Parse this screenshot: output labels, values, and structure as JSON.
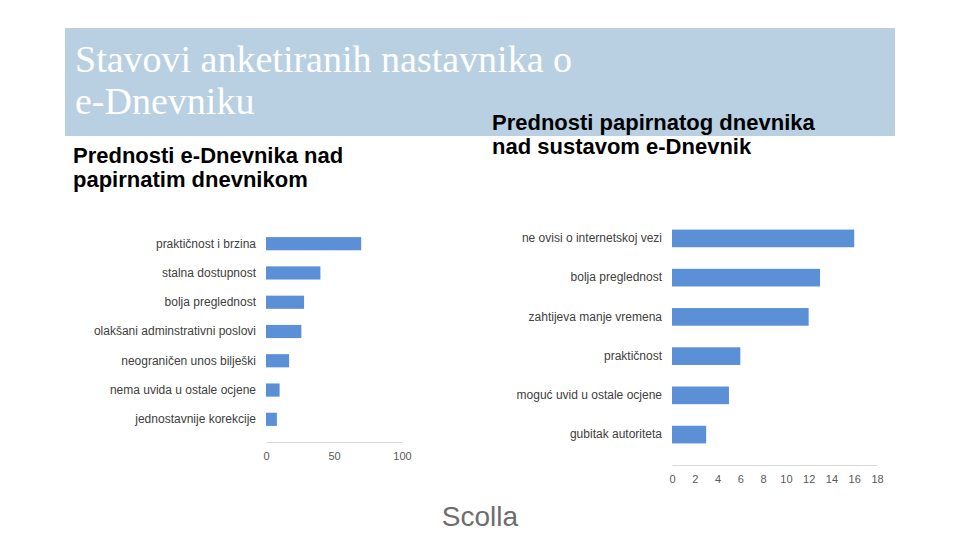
{
  "title": "Stavovi anketiranih nastavnika o e-Dnevniku",
  "logo": "Scolla",
  "chart_data": [
    {
      "type": "bar",
      "orientation": "horizontal",
      "title": "Prednosti e-Dnevnika nad papirnatim dnevnikom",
      "categories": [
        "praktičnost i brzina",
        "stalna dostupnost",
        "bolja preglednost",
        "olakšani adminstrativni poslovi",
        "neograničen unos bilješki",
        "nema uvida u ostale ocjene",
        "jednostavnije korekcije"
      ],
      "values": [
        70,
        40,
        28,
        26,
        17,
        10,
        8
      ],
      "color": "#5b8fd6",
      "xlim": [
        0,
        100
      ],
      "xticks": [
        0,
        50,
        100
      ],
      "grid": false
    },
    {
      "type": "bar",
      "orientation": "horizontal",
      "title": "Prednosti papirnatog dnevnika nad sustavom e-Dnevnik",
      "categories": [
        "ne ovisi o internetskoj vezi",
        "bolja preglednost",
        "zahtijeva manje vremena",
        "praktičnost",
        "moguć uvid u ostale ocjene",
        "gubitak autoriteta"
      ],
      "values": [
        16,
        13,
        12,
        6,
        5,
        3
      ],
      "color": "#5b8fd6",
      "xlim": [
        0,
        18
      ],
      "xticks": [
        0,
        2,
        4,
        6,
        8,
        10,
        12,
        14,
        16,
        18
      ],
      "grid": false
    }
  ]
}
